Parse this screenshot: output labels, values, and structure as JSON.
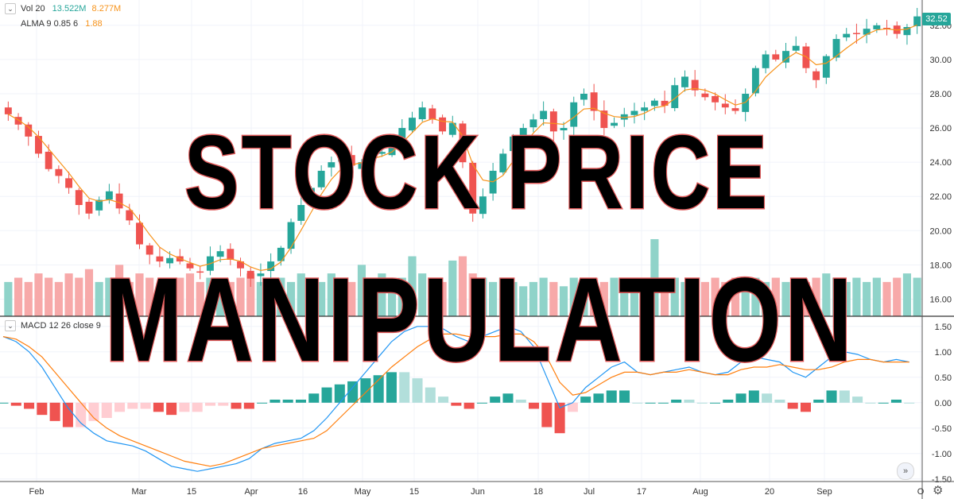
{
  "legend": {
    "volume": {
      "label": "Vol 20",
      "value1": "13.522M",
      "value2": "8.277M"
    },
    "alma": {
      "label": "ALMA 9 0.85 6",
      "value": "1.88"
    },
    "macd": {
      "label": "MACD 12 26 close 9"
    }
  },
  "overlay_text": {
    "line1": "STOCK PRICE",
    "line2": "MANIPULATION"
  },
  "last_price": "32.52",
  "icons": {
    "goto_realtime": "double-chevron-right-icon",
    "settings": "gear-icon",
    "collapse": "chevron-down-icon"
  },
  "colors": {
    "up": "#26a69a",
    "down": "#ef5350",
    "alma": "#f7931a",
    "macd_line": "#2196f3",
    "signal_line": "#ff7f0e",
    "vol_up": "#8fd3c9",
    "vol_down": "#f7a9a9"
  },
  "chart_data": [
    {
      "type": "candlestick",
      "title": "",
      "y_ticks": [
        "32.00",
        "30.00",
        "28.00",
        "26.00",
        "24.00",
        "22.00",
        "20.00",
        "18.00",
        "16.00"
      ],
      "ylim": [
        15,
        33.2
      ],
      "x_ticks": [
        "Feb",
        "Mar",
        "15",
        "Apr",
        "16",
        "May",
        "15",
        "Jun",
        "18",
        "Jul",
        "17",
        "Aug",
        "20",
        "Sep",
        "O"
      ],
      "close_path_approx": [
        26.8,
        26.2,
        25.5,
        24.5,
        23.6,
        23.2,
        22.5,
        21.5,
        21.0,
        21.8,
        22.3,
        21.3,
        20.6,
        19.2,
        18.6,
        18.2,
        18.4,
        18.2,
        17.8,
        17.6,
        18.5,
        18.8,
        18.3,
        17.8,
        17.2,
        17.5,
        18.2,
        19.0,
        20.5,
        21.5,
        22.5,
        23.5,
        24.0,
        24.3,
        23.8,
        24.0,
        24.6,
        24.6,
        25.0,
        26.0,
        26.6,
        27.2,
        26.5,
        25.8,
        26.3,
        24.0,
        21.0,
        22.0,
        23.5,
        24.5,
        25.5,
        26.0,
        26.5,
        27.0,
        25.8,
        26.0,
        27.5,
        28.0,
        27.0,
        26.0,
        26.3,
        26.8,
        27.0,
        27.2,
        27.6,
        27.3,
        28.5,
        29.0,
        28.2,
        27.8,
        27.5,
        27.2,
        27.0,
        28.0,
        29.5,
        30.3,
        30.0,
        30.5,
        30.8,
        29.5,
        28.8,
        30.2,
        31.2,
        31.5,
        31.5,
        31.8,
        32.0,
        31.8,
        31.5,
        31.9,
        32.52
      ],
      "alma_note": "ALMA line follows close path"
    },
    {
      "type": "volume",
      "legend": "Vol 20",
      "values_millions_approx": [
        8,
        9,
        8,
        10,
        9,
        8,
        10,
        9,
        11,
        8,
        9,
        12,
        8,
        10,
        9,
        7,
        8,
        9,
        10,
        8,
        9,
        7,
        8,
        9,
        10,
        8,
        7,
        9,
        8,
        10,
        9,
        8,
        10,
        9,
        8,
        12,
        9,
        10,
        8,
        9,
        14,
        10,
        9,
        8,
        13,
        14,
        10,
        9,
        8,
        9,
        8,
        7,
        8,
        9,
        8,
        7,
        9,
        8,
        9,
        8,
        9,
        8,
        9,
        8,
        18,
        8,
        9,
        8,
        9,
        8,
        9,
        8,
        9,
        8,
        9,
        8,
        9,
        8,
        9,
        8,
        9,
        10,
        9,
        8,
        9,
        8,
        9,
        8,
        9,
        10,
        9
      ]
    },
    {
      "type": "macd",
      "legend": "MACD 12 26 close 9",
      "y_ticks": [
        "1.50",
        "1.00",
        "0.50",
        "0.00",
        "-0.50",
        "-1.00",
        "-1.50"
      ],
      "ylim": [
        -1.55,
        1.7
      ],
      "macd_approx": [
        1.3,
        1.2,
        1.0,
        0.7,
        0.3,
        -0.1,
        -0.4,
        -0.6,
        -0.75,
        -0.8,
        -0.85,
        -0.95,
        -1.1,
        -1.25,
        -1.3,
        -1.35,
        -1.3,
        -1.25,
        -1.2,
        -1.1,
        -0.9,
        -0.8,
        -0.75,
        -0.7,
        -0.55,
        -0.3,
        0.0,
        0.3,
        0.6,
        0.9,
        1.2,
        1.4,
        1.5,
        1.5,
        1.45,
        1.3,
        1.2,
        1.3,
        1.4,
        1.5,
        1.4,
        1.1,
        0.5,
        -0.1,
        0.0,
        0.3,
        0.5,
        0.7,
        0.8,
        0.6,
        0.55,
        0.6,
        0.65,
        0.7,
        0.6,
        0.55,
        0.6,
        0.8,
        0.9,
        0.85,
        0.8,
        0.6,
        0.5,
        0.7,
        0.9,
        1.0,
        0.95,
        0.85,
        0.8,
        0.85,
        0.8
      ],
      "signal_approx": [
        1.3,
        1.25,
        1.1,
        0.9,
        0.6,
        0.3,
        0.0,
        -0.3,
        -0.5,
        -0.65,
        -0.75,
        -0.85,
        -0.95,
        -1.05,
        -1.15,
        -1.2,
        -1.25,
        -1.2,
        -1.1,
        -1.0,
        -0.9,
        -0.85,
        -0.8,
        -0.75,
        -0.7,
        -0.55,
        -0.3,
        -0.05,
        0.2,
        0.45,
        0.7,
        0.9,
        1.1,
        1.25,
        1.35,
        1.35,
        1.3,
        1.3,
        1.3,
        1.35,
        1.35,
        1.2,
        0.9,
        0.4,
        0.15,
        0.2,
        0.35,
        0.5,
        0.6,
        0.6,
        0.55,
        0.6,
        0.6,
        0.65,
        0.6,
        0.55,
        0.55,
        0.65,
        0.7,
        0.7,
        0.75,
        0.7,
        0.65,
        0.65,
        0.7,
        0.8,
        0.85,
        0.85,
        0.8,
        0.8,
        0.8
      ]
    }
  ]
}
